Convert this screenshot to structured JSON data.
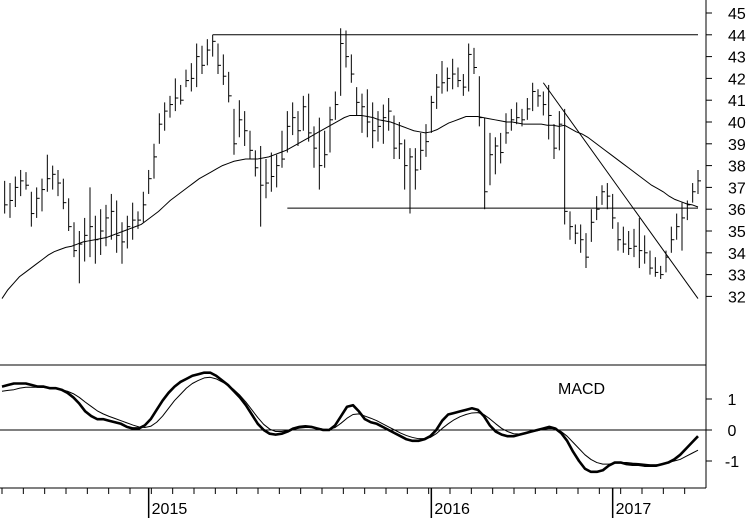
{
  "chart_data": [
    {
      "type": "bar",
      "subtype": "ohlc-weekly-price",
      "y_axis": {
        "ticks": [
          "45",
          "44",
          "43",
          "42",
          "41",
          "40",
          "39",
          "38",
          "37",
          "36",
          "35",
          "34",
          "33",
          "32"
        ],
        "ylim": [
          31.5,
          45.3
        ],
        "side": "right"
      },
      "x_axis": {
        "ticks": [
          "2015",
          "2016",
          "2017"
        ]
      },
      "weekly_bars": {
        "columns": [
          "low",
          "high",
          "close"
        ],
        "rows": [
          [
            35.8,
            37.3,
            36.2
          ],
          [
            35.6,
            37.2,
            36.4
          ],
          [
            36.1,
            37.5,
            37.0
          ],
          [
            36.6,
            37.8,
            37.3
          ],
          [
            36.9,
            37.7,
            37.1
          ],
          [
            35.2,
            36.8,
            35.8
          ],
          [
            35.6,
            37.0,
            36.5
          ],
          [
            35.9,
            37.4,
            36.9
          ],
          [
            36.8,
            38.5,
            37.4
          ],
          [
            36.9,
            38.0,
            37.6
          ],
          [
            36.6,
            37.8,
            37.2
          ],
          [
            36.0,
            37.4,
            36.3
          ],
          [
            35.0,
            36.5,
            35.2
          ],
          [
            33.8,
            35.4,
            34.1
          ],
          [
            32.6,
            35.0,
            34.4
          ],
          [
            33.6,
            35.6,
            34.8
          ],
          [
            33.8,
            37.0,
            35.2
          ],
          [
            33.5,
            35.7,
            34.6
          ],
          [
            33.9,
            36.0,
            35.0
          ],
          [
            34.3,
            36.2,
            35.6
          ],
          [
            34.6,
            36.7,
            35.9
          ],
          [
            34.0,
            36.4,
            34.8
          ],
          [
            33.5,
            35.4,
            34.5
          ],
          [
            34.2,
            35.7,
            35.2
          ],
          [
            34.6,
            36.3,
            35.5
          ],
          [
            35.1,
            35.9,
            35.5
          ],
          [
            35.4,
            36.8,
            36.2
          ],
          [
            36.7,
            37.8,
            37.4
          ],
          [
            37.4,
            39.0,
            38.4
          ],
          [
            39.0,
            40.4,
            39.9
          ],
          [
            39.6,
            40.9,
            40.5
          ],
          [
            40.2,
            41.2,
            40.8
          ],
          [
            40.5,
            42.0,
            41.1
          ],
          [
            40.8,
            41.7,
            41.0
          ],
          [
            41.6,
            42.4,
            41.9
          ],
          [
            41.4,
            42.7,
            42.0
          ],
          [
            41.6,
            43.6,
            43.0
          ],
          [
            42.2,
            43.5,
            42.6
          ],
          [
            42.6,
            43.8,
            43.3
          ],
          [
            43.0,
            44.0,
            43.7
          ],
          [
            42.2,
            43.6,
            42.6
          ],
          [
            41.7,
            43.1,
            42.1
          ],
          [
            40.9,
            42.3,
            41.2
          ],
          [
            38.5,
            40.6,
            39.0
          ],
          [
            39.3,
            41.0,
            40.1
          ],
          [
            38.9,
            40.5,
            39.6
          ],
          [
            38.3,
            39.6,
            38.7
          ],
          [
            37.5,
            38.7,
            37.9
          ],
          [
            35.2,
            38.9,
            37.1
          ],
          [
            36.5,
            38.3,
            37.2
          ],
          [
            36.8,
            38.6,
            37.5
          ],
          [
            37.0,
            38.5,
            38.0
          ],
          [
            37.9,
            39.6,
            38.3
          ],
          [
            38.6,
            40.5,
            39.8
          ],
          [
            39.4,
            40.9,
            40.2
          ],
          [
            38.9,
            40.5,
            39.6
          ],
          [
            39.6,
            41.2,
            40.7
          ],
          [
            39.1,
            41.3,
            39.5
          ],
          [
            37.9,
            39.8,
            38.8
          ],
          [
            36.9,
            40.2,
            38.0
          ],
          [
            37.9,
            39.6,
            38.5
          ],
          [
            38.6,
            40.7,
            40.1
          ],
          [
            40.1,
            41.4,
            40.8
          ],
          [
            41.2,
            44.3,
            43.6
          ],
          [
            42.5,
            44.2,
            43.0
          ],
          [
            41.8,
            43.1,
            42.2
          ],
          [
            40.3,
            41.6,
            40.9
          ],
          [
            39.5,
            41.3,
            40.7
          ],
          [
            39.3,
            41.5,
            40.0
          ],
          [
            38.8,
            40.9,
            39.6
          ],
          [
            39.1,
            40.5,
            39.8
          ],
          [
            39.0,
            40.8,
            40.2
          ],
          [
            39.6,
            41.1,
            40.5
          ],
          [
            38.3,
            40.3,
            38.8
          ],
          [
            38.3,
            40.0,
            39.0
          ],
          [
            36.9,
            39.2,
            38.0
          ],
          [
            35.8,
            38.8,
            38.4
          ],
          [
            36.9,
            38.8,
            37.8
          ],
          [
            37.8,
            39.5,
            38.7
          ],
          [
            38.4,
            39.9,
            39.1
          ],
          [
            39.5,
            41.2,
            40.9
          ],
          [
            40.6,
            42.2,
            41.6
          ],
          [
            41.3,
            42.8,
            41.8
          ],
          [
            41.4,
            42.5,
            42.0
          ],
          [
            41.5,
            42.9,
            42.2
          ],
          [
            41.6,
            42.5,
            41.9
          ],
          [
            41.2,
            42.2,
            41.6
          ],
          [
            41.4,
            43.6,
            43.1
          ],
          [
            42.2,
            43.4,
            42.5
          ],
          [
            39.8,
            42.1,
            40.2
          ],
          [
            36.0,
            40.2,
            36.8
          ],
          [
            37.1,
            39.5,
            38.5
          ],
          [
            37.6,
            39.3,
            38.9
          ],
          [
            38.1,
            39.5,
            38.6
          ],
          [
            39.0,
            40.4,
            39.5
          ],
          [
            39.6,
            40.6,
            40.1
          ],
          [
            39.9,
            40.9,
            40.2
          ],
          [
            39.8,
            40.6,
            40.1
          ],
          [
            40.1,
            41.1,
            40.6
          ],
          [
            40.5,
            41.8,
            41.4
          ],
          [
            40.7,
            41.5,
            41.2
          ],
          [
            40.3,
            41.4,
            40.8
          ],
          [
            39.2,
            41.7,
            40.3
          ],
          [
            38.3,
            39.9,
            38.8
          ],
          [
            38.7,
            40.5,
            39.9
          ],
          [
            35.3,
            40.6,
            35.9
          ],
          [
            34.6,
            35.9,
            35.2
          ],
          [
            34.4,
            35.3,
            34.9
          ],
          [
            34.0,
            35.3,
            34.6
          ],
          [
            33.3,
            34.9,
            33.8
          ],
          [
            34.5,
            36.0,
            35.4
          ],
          [
            35.5,
            36.6,
            36.0
          ],
          [
            36.2,
            37.1,
            36.8
          ],
          [
            36.0,
            37.2,
            36.6
          ],
          [
            35.1,
            36.7,
            35.6
          ],
          [
            34.1,
            35.4,
            34.6
          ],
          [
            34.0,
            35.2,
            34.4
          ],
          [
            33.9,
            35.0,
            34.2
          ],
          [
            33.8,
            35.1,
            34.3
          ],
          [
            33.3,
            35.6,
            34.1
          ],
          [
            33.5,
            34.8,
            34.0
          ],
          [
            33.0,
            34.1,
            33.3
          ],
          [
            32.9,
            33.8,
            33.1
          ],
          [
            32.8,
            33.4,
            33.0
          ],
          [
            33.1,
            34.1,
            33.8
          ],
          [
            34.0,
            35.2,
            34.6
          ],
          [
            34.6,
            35.8,
            35.2
          ],
          [
            34.1,
            36.3,
            35.6
          ],
          [
            35.5,
            36.4,
            36.2
          ],
          [
            36.3,
            37.2,
            36.8
          ],
          [
            36.7,
            37.8,
            37.3
          ]
        ]
      },
      "moving_average_values": [
        31.9,
        32.3,
        32.6,
        32.9,
        33.1,
        33.3,
        33.5,
        33.7,
        33.9,
        34.05,
        34.15,
        34.25,
        34.3,
        34.4,
        34.5,
        34.55,
        34.6,
        34.65,
        34.7,
        34.8,
        34.9,
        35.0,
        35.1,
        35.2,
        35.3,
        35.5,
        35.7,
        35.9,
        36.15,
        36.4,
        36.6,
        36.8,
        37.0,
        37.2,
        37.4,
        37.55,
        37.7,
        37.85,
        38.0,
        38.1,
        38.2,
        38.25,
        38.3,
        38.3,
        38.3,
        38.35,
        38.4,
        38.5,
        38.6,
        38.7,
        38.85,
        39.0,
        39.15,
        39.3,
        39.45,
        39.6,
        39.75,
        39.9,
        40.05,
        40.2,
        40.3,
        40.3,
        40.3,
        40.25,
        40.2,
        40.1,
        40.05,
        40.0,
        39.9,
        39.8,
        39.7,
        39.6,
        39.55,
        39.5,
        39.55,
        39.65,
        39.8,
        39.95,
        40.05,
        40.15,
        40.25,
        40.25,
        40.25,
        40.2,
        40.15,
        40.1,
        40.05,
        40.0,
        40.0,
        39.95,
        39.9,
        39.9,
        39.9,
        39.9,
        39.85,
        39.85,
        39.8,
        39.85,
        39.7,
        39.55,
        39.45,
        39.3,
        39.1,
        38.9,
        38.7,
        38.5,
        38.3,
        38.1,
        37.9,
        37.7,
        37.5,
        37.3,
        37.1,
        36.95,
        36.8,
        36.6,
        36.45,
        36.35,
        36.25,
        36.2,
        36.1
      ],
      "trend_lines": [
        {
          "points": [
            [
              39,
              44.0
            ],
            [
              130,
              44.0
            ]
          ]
        },
        {
          "points": [
            [
              53,
              36.05
            ],
            [
              130,
              36.05
            ]
          ]
        },
        {
          "points": [
            [
              101,
              41.8
            ],
            [
              130,
              31.9
            ]
          ]
        }
      ]
    },
    {
      "type": "line",
      "title": "MACD",
      "y_axis": {
        "ticks": [
          "1",
          "0",
          "-1"
        ],
        "ylim": [
          -1.5,
          2.0
        ]
      },
      "x_axis": {
        "ticks": [
          "2015",
          "2016",
          "2017"
        ]
      },
      "series": [
        {
          "values": [
            1.4,
            1.45,
            1.5,
            1.5,
            1.5,
            1.45,
            1.4,
            1.4,
            1.35,
            1.35,
            1.3,
            1.2,
            1.05,
            0.85,
            0.6,
            0.45,
            0.35,
            0.35,
            0.3,
            0.25,
            0.2,
            0.1,
            0.05,
            0.05,
            0.15,
            0.35,
            0.65,
            0.95,
            1.2,
            1.4,
            1.55,
            1.65,
            1.75,
            1.8,
            1.85,
            1.85,
            1.75,
            1.6,
            1.45,
            1.25,
            1.05,
            0.8,
            0.5,
            0.2,
            0.0,
            -0.12,
            -0.15,
            -0.12,
            -0.05,
            0.05,
            0.1,
            0.12,
            0.1,
            0.05,
            0.0,
            0.0,
            0.15,
            0.45,
            0.75,
            0.8,
            0.6,
            0.35,
            0.25,
            0.2,
            0.1,
            0.0,
            -0.1,
            -0.2,
            -0.3,
            -0.35,
            -0.35,
            -0.3,
            -0.2,
            0.0,
            0.3,
            0.5,
            0.55,
            0.6,
            0.65,
            0.7,
            0.65,
            0.45,
            0.15,
            -0.05,
            -0.15,
            -0.2,
            -0.2,
            -0.15,
            -0.1,
            -0.05,
            0.0,
            0.05,
            0.1,
            0.05,
            -0.1,
            -0.35,
            -0.7,
            -1.0,
            -1.25,
            -1.35,
            -1.35,
            -1.3,
            -1.15,
            -1.05,
            -1.05,
            -1.1,
            -1.12,
            -1.12,
            -1.15,
            -1.15,
            -1.15,
            -1.1,
            -1.05,
            -0.95,
            -0.8,
            -0.6,
            -0.4,
            -0.2
          ]
        },
        {
          "values": [
            1.25,
            1.28,
            1.3,
            1.35,
            1.38,
            1.38,
            1.38,
            1.37,
            1.35,
            1.33,
            1.3,
            1.25,
            1.17,
            1.05,
            0.9,
            0.76,
            0.62,
            0.52,
            0.44,
            0.37,
            0.3,
            0.23,
            0.16,
            0.1,
            0.08,
            0.12,
            0.25,
            0.45,
            0.7,
            0.95,
            1.15,
            1.35,
            1.5,
            1.6,
            1.68,
            1.7,
            1.65,
            1.55,
            1.45,
            1.3,
            1.12,
            0.9,
            0.65,
            0.4,
            0.18,
            0.03,
            -0.05,
            -0.05,
            -0.02,
            0.02,
            0.06,
            0.08,
            0.08,
            0.06,
            0.03,
            0.02,
            0.08,
            0.22,
            0.38,
            0.5,
            0.52,
            0.45,
            0.38,
            0.3,
            0.2,
            0.1,
            0.0,
            -0.1,
            -0.18,
            -0.24,
            -0.28,
            -0.28,
            -0.24,
            -0.12,
            0.05,
            0.2,
            0.33,
            0.43,
            0.5,
            0.55,
            0.56,
            0.5,
            0.36,
            0.2,
            0.05,
            -0.05,
            -0.12,
            -0.13,
            -0.1,
            -0.05,
            -0.02,
            0.02,
            0.05,
            0.04,
            -0.05,
            -0.2,
            -0.4,
            -0.6,
            -0.8,
            -0.95,
            -1.05,
            -1.1,
            -1.1,
            -1.07,
            -1.05,
            -1.05,
            -1.07,
            -1.08,
            -1.1,
            -1.12,
            -1.12,
            -1.1,
            -1.05,
            -1.0,
            -0.95,
            -0.85,
            -0.75,
            -0.65
          ]
        }
      ]
    }
  ]
}
